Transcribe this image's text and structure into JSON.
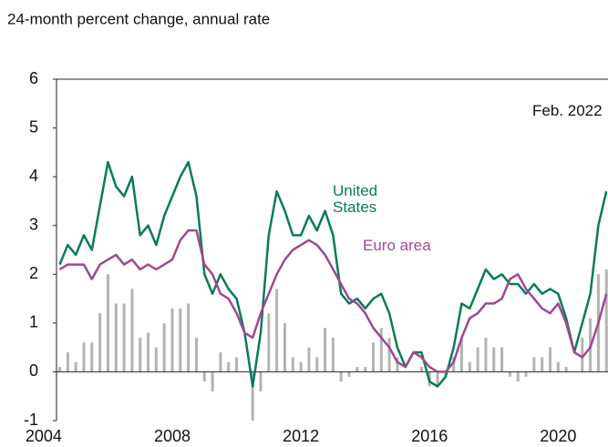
{
  "chart_data": {
    "type": "line",
    "subtitle": "24-month percent change, annual rate",
    "x": [
      2004.5,
      2004.75,
      2005.0,
      2005.25,
      2005.5,
      2005.75,
      2006.0,
      2006.25,
      2006.5,
      2006.75,
      2007.0,
      2007.25,
      2007.5,
      2007.75,
      2008.0,
      2008.25,
      2008.5,
      2008.75,
      2009.0,
      2009.25,
      2009.5,
      2009.75,
      2010.0,
      2010.25,
      2010.5,
      2010.75,
      2011.0,
      2011.25,
      2011.5,
      2011.75,
      2012.0,
      2012.25,
      2012.5,
      2012.75,
      2013.0,
      2013.25,
      2013.5,
      2013.75,
      2014.0,
      2014.25,
      2014.5,
      2014.75,
      2015.0,
      2015.25,
      2015.5,
      2015.75,
      2016.0,
      2016.25,
      2016.5,
      2016.75,
      2017.0,
      2017.25,
      2017.5,
      2017.75,
      2018.0,
      2018.25,
      2018.5,
      2018.75,
      2019.0,
      2019.25,
      2019.5,
      2019.75,
      2020.0,
      2020.25,
      2020.5,
      2020.75,
      2021.0,
      2021.25,
      2021.5
    ],
    "series": [
      {
        "type": "bar",
        "color": "#b3b3b3",
        "values": [
          0.1,
          0.4,
          0.2,
          0.6,
          0.6,
          1.2,
          2.0,
          1.4,
          1.4,
          1.7,
          0.7,
          0.8,
          0.5,
          1.0,
          1.3,
          1.3,
          1.4,
          0.7,
          -0.2,
          -0.4,
          0.4,
          0.2,
          0.3,
          0.0,
          -1.0,
          -0.4,
          1.2,
          1.7,
          1.0,
          0.3,
          0.2,
          0.5,
          0.3,
          0.9,
          0.7,
          -0.2,
          -0.1,
          0.1,
          0.1,
          0.6,
          0.9,
          0.7,
          0.3,
          0.0,
          0.0,
          0.1,
          -0.3,
          -0.3,
          -0.1,
          0.3,
          0.7,
          0.2,
          0.5,
          0.7,
          0.5,
          0.5,
          -0.1,
          -0.2,
          -0.1,
          0.3,
          0.3,
          0.5,
          0.2,
          0.1,
          0.0,
          0.7,
          1.1,
          2.0,
          2.1
        ]
      },
      {
        "name": "United States",
        "color": "#0a7a5c",
        "values": [
          2.2,
          2.6,
          2.4,
          2.8,
          2.5,
          3.4,
          4.3,
          3.8,
          3.6,
          4.0,
          2.8,
          3.0,
          2.6,
          3.2,
          3.6,
          4.0,
          4.3,
          3.6,
          2.0,
          1.6,
          2.0,
          1.7,
          1.5,
          0.8,
          -0.3,
          0.8,
          2.8,
          3.7,
          3.3,
          2.8,
          2.8,
          3.2,
          2.9,
          3.3,
          2.8,
          1.6,
          1.4,
          1.5,
          1.3,
          1.5,
          1.6,
          1.2,
          0.5,
          0.1,
          0.4,
          0.4,
          -0.2,
          -0.3,
          -0.1,
          0.5,
          1.4,
          1.3,
          1.7,
          2.1,
          1.9,
          2.0,
          1.8,
          1.8,
          1.6,
          1.8,
          1.6,
          1.7,
          1.6,
          1.1,
          0.4,
          1.0,
          1.6,
          3.0,
          3.7
        ]
      },
      {
        "name": "Euro area",
        "color": "#9c4a8e",
        "values": [
          2.1,
          2.2,
          2.2,
          2.2,
          1.9,
          2.2,
          2.3,
          2.4,
          2.2,
          2.3,
          2.1,
          2.2,
          2.1,
          2.2,
          2.3,
          2.7,
          2.9,
          2.9,
          2.2,
          2.0,
          1.6,
          1.5,
          1.2,
          0.8,
          0.7,
          1.2,
          1.6,
          2.0,
          2.3,
          2.5,
          2.6,
          2.7,
          2.6,
          2.4,
          2.1,
          1.8,
          1.5,
          1.4,
          1.2,
          0.9,
          0.7,
          0.5,
          0.2,
          0.1,
          0.4,
          0.3,
          0.1,
          0.0,
          0.0,
          0.2,
          0.7,
          1.1,
          1.2,
          1.4,
          1.4,
          1.5,
          1.9,
          2.0,
          1.7,
          1.5,
          1.3,
          1.2,
          1.4,
          1.0,
          0.4,
          0.3,
          0.5,
          1.0,
          1.6
        ]
      }
    ],
    "annotations": [
      "Feb. 2022"
    ],
    "xlim": [
      2004.4,
      2021.55
    ],
    "xticks": [
      2004,
      2008,
      2012,
      2016,
      2020
    ],
    "ylim": [
      -1,
      6
    ],
    "yticks": [
      -1,
      0,
      1,
      2,
      3,
      4,
      5,
      6
    ]
  }
}
